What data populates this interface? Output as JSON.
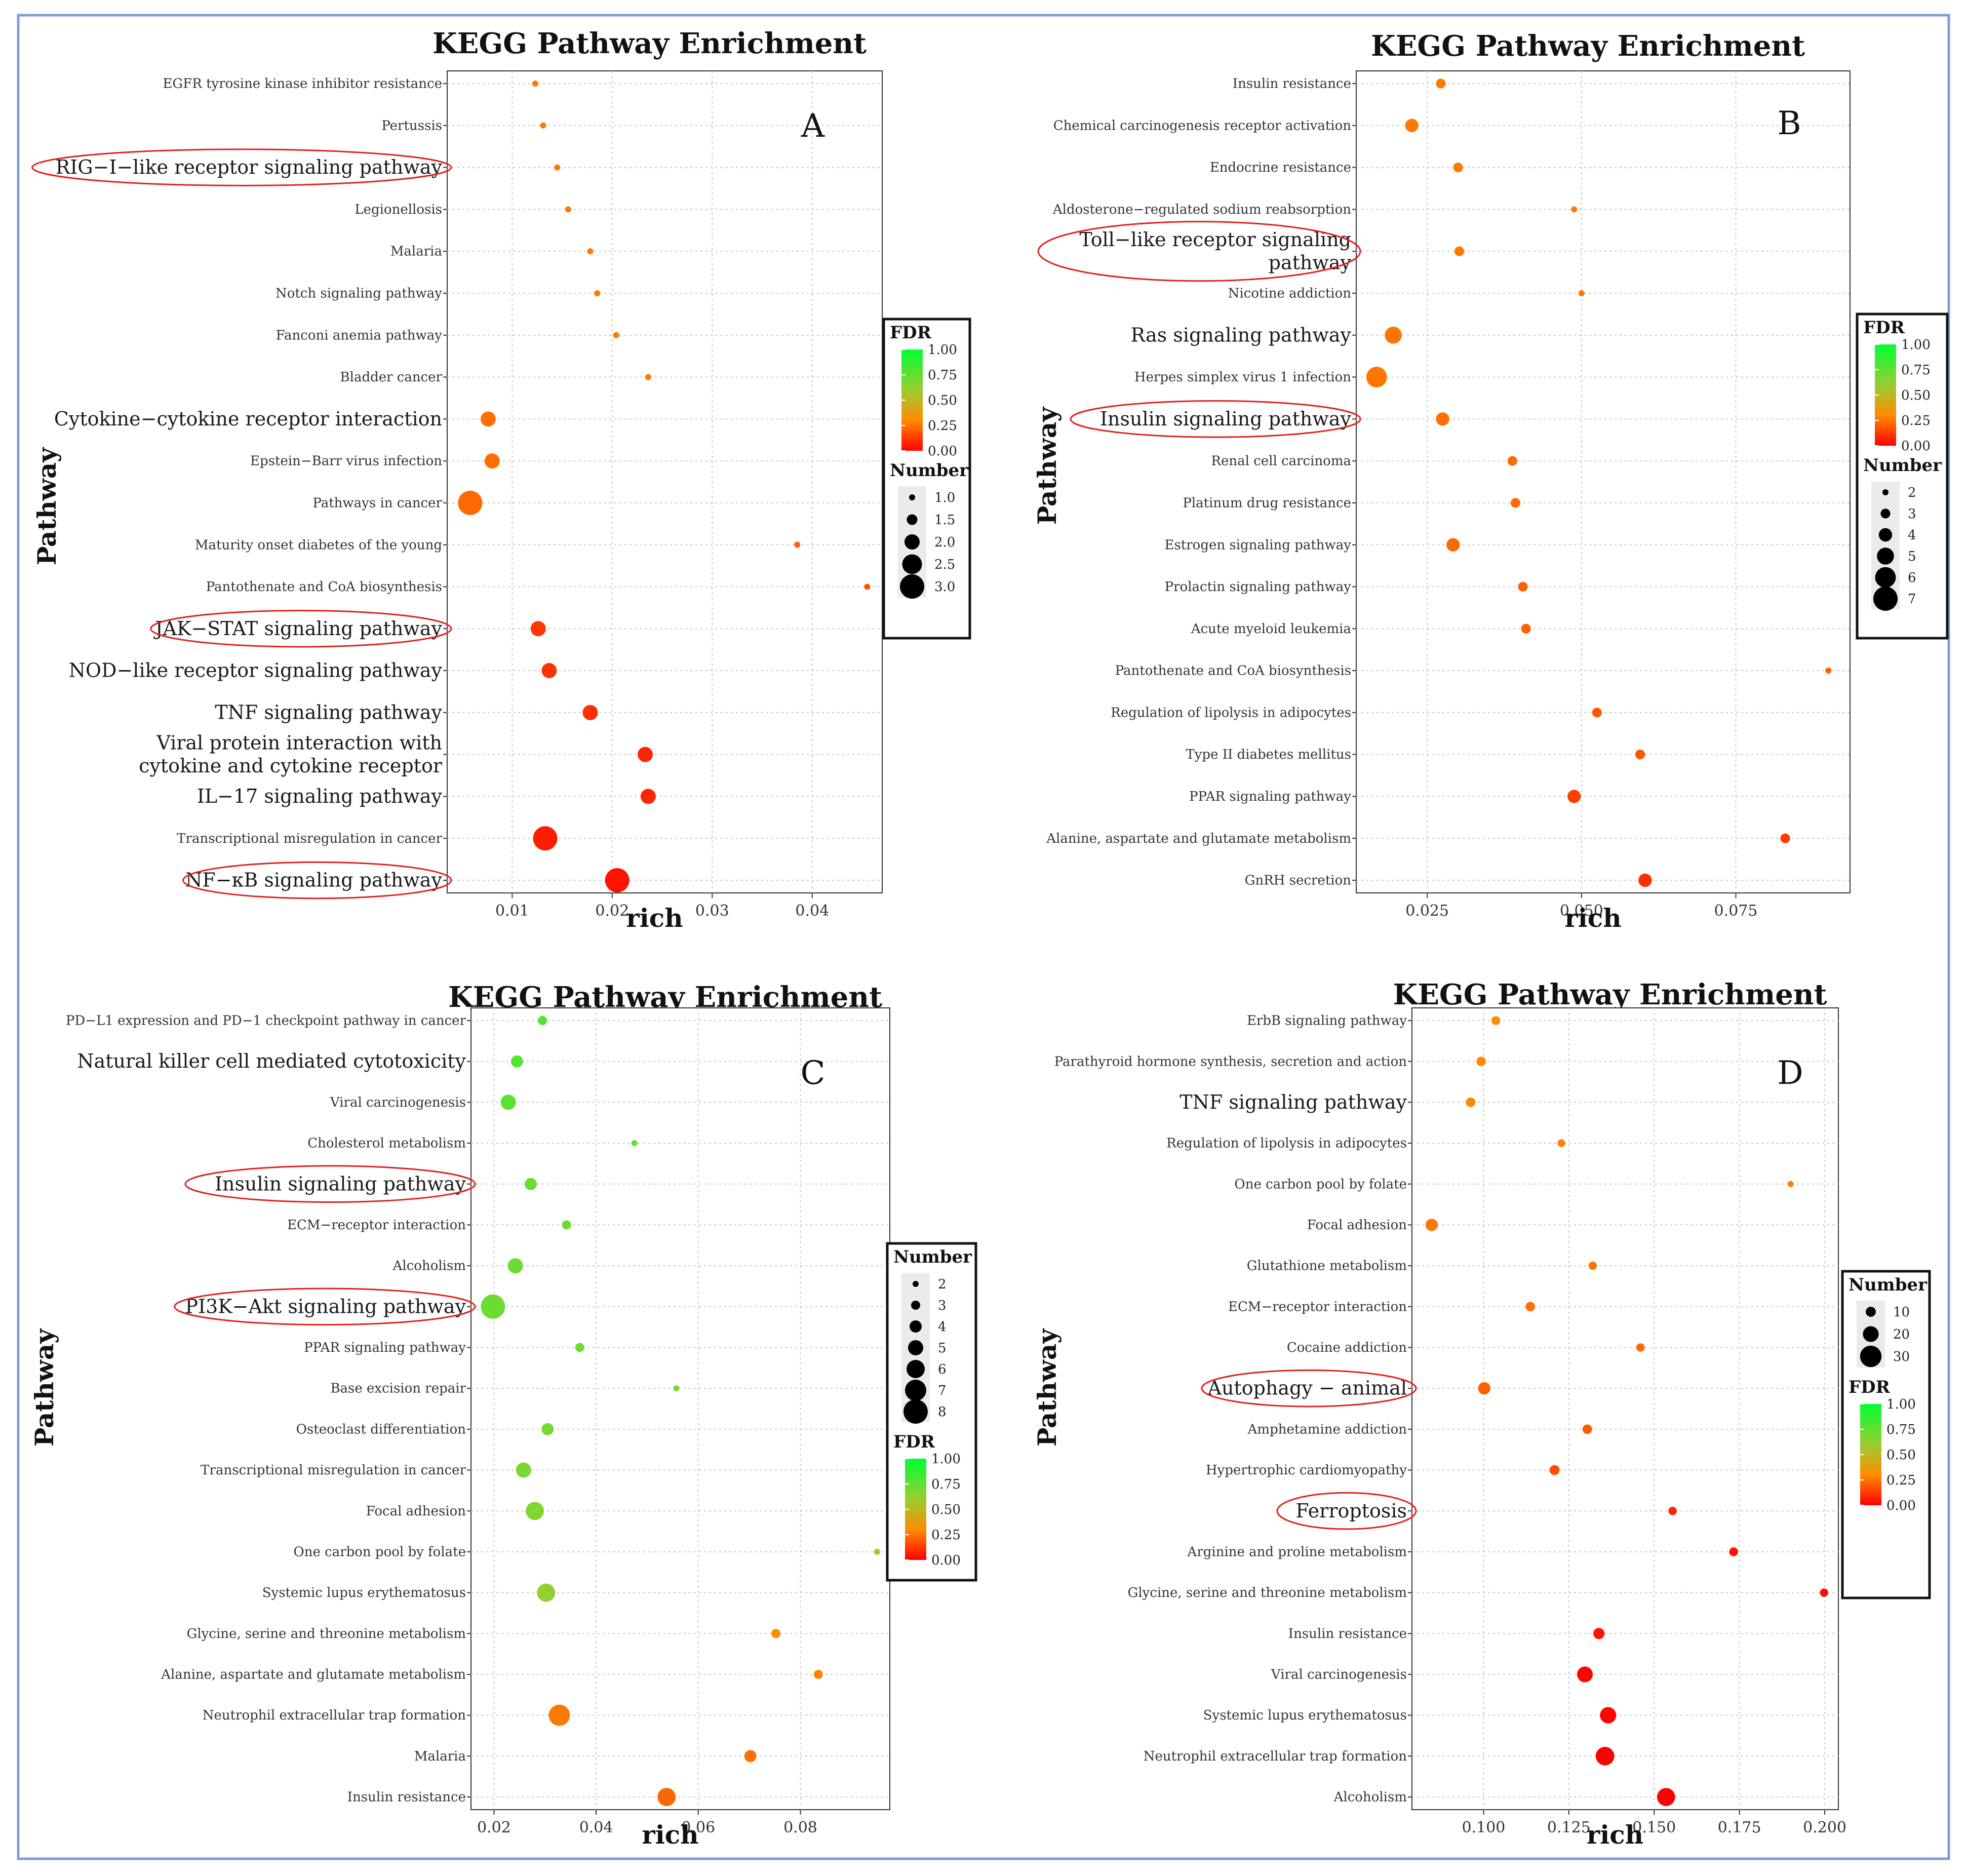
{
  "figure": {
    "border_color": "#7B9FD3",
    "highlight_color": "#E0201B",
    "fdr_gradient": [
      "#FF0000",
      "#FF8C00",
      "#9ACD32",
      "#00FF33"
    ],
    "grid_color": "#C8C8C8"
  },
  "chart_data": [
    {
      "type": "scatter",
      "panel_label": "A",
      "title": "KEGG Pathway Enrichment",
      "xlabel": "rich",
      "ylabel": "Pathway",
      "xlim": [
        0.0035,
        0.047
      ],
      "xticks": [
        0.01,
        0.02,
        0.03,
        0.04
      ],
      "xtick_labels": [
        "0.01",
        "0.02",
        "0.03",
        "0.04"
      ],
      "legend_order": [
        "fdr",
        "number"
      ],
      "fdr_legend": {
        "title": "FDR",
        "ticks": [
          "1.00",
          "0.75",
          "0.50",
          "0.25",
          "0.00"
        ]
      },
      "number_legend": {
        "title": "Number",
        "values": [
          1,
          1.5,
          2,
          2.5,
          3
        ],
        "labels": [
          "1.0",
          "1.5",
          "2.0",
          "2.5",
          "3.0"
        ],
        "min": 1,
        "max": 3
      },
      "points": [
        {
          "pathway": "EGFR tyrosine kinase inhibitor resistance",
          "rich": 0.0123,
          "number": 1,
          "fdr": 0.26,
          "emph": false,
          "circled": false
        },
        {
          "pathway": "Pertussis",
          "rich": 0.0131,
          "number": 1,
          "fdr": 0.26,
          "emph": false,
          "circled": false
        },
        {
          "pathway": "RIG−I−like receptor signaling pathway",
          "rich": 0.0145,
          "number": 1,
          "fdr": 0.26,
          "emph": true,
          "circled": true
        },
        {
          "pathway": "Legionellosis",
          "rich": 0.0156,
          "number": 1,
          "fdr": 0.26,
          "emph": false,
          "circled": false
        },
        {
          "pathway": "Malaria",
          "rich": 0.0178,
          "number": 1,
          "fdr": 0.26,
          "emph": false,
          "circled": false
        },
        {
          "pathway": "Notch signaling pathway",
          "rich": 0.0185,
          "number": 1,
          "fdr": 0.26,
          "emph": false,
          "circled": false
        },
        {
          "pathway": "Fanconi anemia pathway",
          "rich": 0.0204,
          "number": 1,
          "fdr": 0.26,
          "emph": false,
          "circled": false
        },
        {
          "pathway": "Bladder cancer",
          "rich": 0.0236,
          "number": 1,
          "fdr": 0.26,
          "emph": false,
          "circled": false
        },
        {
          "pathway": "Cytokine−cytokine receptor interaction",
          "rich": 0.0076,
          "number": 2,
          "fdr": 0.24,
          "emph": true,
          "circled": false
        },
        {
          "pathway": "Epstein−Barr virus infection",
          "rich": 0.008,
          "number": 2,
          "fdr": 0.24,
          "emph": false,
          "circled": false
        },
        {
          "pathway": "Pathways in cancer",
          "rich": 0.0058,
          "number": 3,
          "fdr": 0.22,
          "emph": false,
          "circled": false
        },
        {
          "pathway": "Maturity onset diabetes of the young",
          "rich": 0.0385,
          "number": 1,
          "fdr": 0.2,
          "emph": false,
          "circled": false
        },
        {
          "pathway": "Pantothenate and CoA biosynthesis",
          "rich": 0.0455,
          "number": 1,
          "fdr": 0.18,
          "emph": false,
          "circled": false
        },
        {
          "pathway": "JAK−STAT signaling pathway",
          "rich": 0.0126,
          "number": 2,
          "fdr": 0.12,
          "emph": true,
          "circled": true
        },
        {
          "pathway": "NOD−like receptor signaling pathway",
          "rich": 0.0137,
          "number": 2,
          "fdr": 0.11,
          "emph": true,
          "circled": false
        },
        {
          "pathway": "TNF signaling pathway",
          "rich": 0.0178,
          "number": 2,
          "fdr": 0.1,
          "emph": true,
          "circled": false
        },
        {
          "pathway": "Viral protein interaction with\ncytokine and cytokine receptor",
          "rich": 0.0233,
          "number": 2,
          "fdr": 0.08,
          "emph": true,
          "circled": false
        },
        {
          "pathway": "IL−17 signaling pathway",
          "rich": 0.0236,
          "number": 2,
          "fdr": 0.08,
          "emph": true,
          "circled": false
        },
        {
          "pathway": "Transcriptional misregulation in cancer",
          "rich": 0.0133,
          "number": 3,
          "fdr": 0.06,
          "emph": false,
          "circled": false
        },
        {
          "pathway": "NF−κB signaling pathway",
          "rich": 0.0205,
          "number": 3,
          "fdr": 0.04,
          "emph": true,
          "circled": true
        }
      ]
    },
    {
      "type": "scatter",
      "panel_label": "B",
      "title": "KEGG Pathway Enrichment",
      "xlabel": "rich",
      "ylabel": "Pathway",
      "xlim": [
        0.0135,
        0.0935
      ],
      "xticks": [
        0.025,
        0.05,
        0.075
      ],
      "xtick_labels": [
        "0.025",
        "0.050",
        "0.075"
      ],
      "legend_order": [
        "fdr",
        "number"
      ],
      "fdr_legend": {
        "title": "FDR",
        "ticks": [
          "1.00",
          "0.75",
          "0.50",
          "0.25",
          "0.00"
        ]
      },
      "number_legend": {
        "title": "Number",
        "values": [
          2,
          3,
          4,
          5,
          6,
          7
        ],
        "labels": [
          "2",
          "3",
          "4",
          "5",
          "6",
          "7"
        ],
        "min": 2,
        "max": 7
      },
      "points": [
        {
          "pathway": "Insulin resistance",
          "rich": 0.0272,
          "number": 3,
          "fdr": 0.26,
          "emph": false,
          "circled": false
        },
        {
          "pathway": "Chemical carcinogenesis receptor activation",
          "rich": 0.0225,
          "number": 4,
          "fdr": 0.26,
          "emph": false,
          "circled": false
        },
        {
          "pathway": "Endocrine resistance",
          "rich": 0.03,
          "number": 3,
          "fdr": 0.26,
          "emph": false,
          "circled": false
        },
        {
          "pathway": "Aldosterone−regulated sodium reabsorption",
          "rich": 0.0488,
          "number": 2,
          "fdr": 0.26,
          "emph": false,
          "circled": false
        },
        {
          "pathway": "Toll−like receptor signaling\npathway",
          "rich": 0.0302,
          "number": 3,
          "fdr": 0.26,
          "emph": true,
          "circled": true
        },
        {
          "pathway": "Nicotine addiction",
          "rich": 0.05,
          "number": 2,
          "fdr": 0.26,
          "emph": false,
          "circled": false
        },
        {
          "pathway": "Ras signaling pathway",
          "rich": 0.0195,
          "number": 5,
          "fdr": 0.25,
          "emph": true,
          "circled": false
        },
        {
          "pathway": "Herpes simplex virus 1 infection",
          "rich": 0.0168,
          "number": 6,
          "fdr": 0.25,
          "emph": false,
          "circled": false
        },
        {
          "pathway": "Insulin signaling pathway",
          "rich": 0.0275,
          "number": 4,
          "fdr": 0.24,
          "emph": true,
          "circled": true
        },
        {
          "pathway": "Renal cell carcinoma",
          "rich": 0.0388,
          "number": 3,
          "fdr": 0.23,
          "emph": false,
          "circled": false
        },
        {
          "pathway": "Platinum drug resistance",
          "rich": 0.0393,
          "number": 3,
          "fdr": 0.23,
          "emph": false,
          "circled": false
        },
        {
          "pathway": "Estrogen signaling pathway",
          "rich": 0.0292,
          "number": 4,
          "fdr": 0.22,
          "emph": false,
          "circled": false
        },
        {
          "pathway": "Prolactin signaling pathway",
          "rich": 0.0405,
          "number": 3,
          "fdr": 0.21,
          "emph": false,
          "circled": false
        },
        {
          "pathway": "Acute myeloid leukemia",
          "rich": 0.041,
          "number": 3,
          "fdr": 0.21,
          "emph": false,
          "circled": false
        },
        {
          "pathway": "Pantothenate and CoA biosynthesis",
          "rich": 0.09,
          "number": 2,
          "fdr": 0.2,
          "emph": false,
          "circled": false
        },
        {
          "pathway": "Regulation of lipolysis in adipocytes",
          "rich": 0.0525,
          "number": 3,
          "fdr": 0.19,
          "emph": false,
          "circled": false
        },
        {
          "pathway": "Type II diabetes mellitus",
          "rich": 0.0595,
          "number": 3,
          "fdr": 0.18,
          "emph": false,
          "circled": false
        },
        {
          "pathway": "PPAR signaling pathway",
          "rich": 0.0488,
          "number": 4,
          "fdr": 0.14,
          "emph": false,
          "circled": false
        },
        {
          "pathway": "Alanine, aspartate and glutamate metabolism",
          "rich": 0.083,
          "number": 3,
          "fdr": 0.13,
          "emph": false,
          "circled": false
        },
        {
          "pathway": "GnRH secretion",
          "rich": 0.0603,
          "number": 4,
          "fdr": 0.1,
          "emph": false,
          "circled": false
        }
      ]
    },
    {
      "type": "scatter",
      "panel_label": "C",
      "title": "KEGG Pathway Enrichment",
      "xlabel": "rich",
      "ylabel": "Pathway",
      "xlim": [
        0.0155,
        0.0975
      ],
      "xticks": [
        0.02,
        0.04,
        0.06,
        0.08
      ],
      "xtick_labels": [
        "0.02",
        "0.04",
        "0.06",
        "0.08"
      ],
      "legend_order": [
        "number",
        "fdr"
      ],
      "fdr_legend": {
        "title": "FDR",
        "ticks": [
          "1.00",
          "0.75",
          "0.50",
          "0.25",
          "0.00"
        ]
      },
      "number_legend": {
        "title": "Number",
        "values": [
          2,
          3,
          4,
          5,
          6,
          7,
          8
        ],
        "labels": [
          "2",
          "3",
          "4",
          "5",
          "6",
          "7",
          "8"
        ],
        "min": 2,
        "max": 8
      },
      "points": [
        {
          "pathway": "PD−L1 expression and PD−1 checkpoint pathway in cancer",
          "rich": 0.0295,
          "number": 3,
          "fdr": 0.8,
          "emph": false,
          "circled": false
        },
        {
          "pathway": "Natural killer cell mediated cytotoxicity",
          "rich": 0.0245,
          "number": 4,
          "fdr": 0.78,
          "emph": true,
          "circled": false
        },
        {
          "pathway": "Viral carcinogenesis",
          "rich": 0.0228,
          "number": 5,
          "fdr": 0.76,
          "emph": false,
          "circled": false
        },
        {
          "pathway": "Cholesterol metabolism",
          "rich": 0.0475,
          "number": 2,
          "fdr": 0.74,
          "emph": false,
          "circled": false
        },
        {
          "pathway": "Insulin signaling pathway",
          "rich": 0.0272,
          "number": 4,
          "fdr": 0.72,
          "emph": true,
          "circled": true
        },
        {
          "pathway": "ECM−receptor interaction",
          "rich": 0.0342,
          "number": 3,
          "fdr": 0.72,
          "emph": false,
          "circled": false
        },
        {
          "pathway": "Alcoholism",
          "rich": 0.0242,
          "number": 5,
          "fdr": 0.72,
          "emph": false,
          "circled": false
        },
        {
          "pathway": "PI3K−Akt signaling pathway",
          "rich": 0.0198,
          "number": 8,
          "fdr": 0.72,
          "emph": true,
          "circled": true
        },
        {
          "pathway": "PPAR signaling pathway",
          "rich": 0.0368,
          "number": 3,
          "fdr": 0.72,
          "emph": false,
          "circled": false
        },
        {
          "pathway": "Base excision repair",
          "rich": 0.0557,
          "number": 2,
          "fdr": 0.7,
          "emph": false,
          "circled": false
        },
        {
          "pathway": "Osteoclast differentiation",
          "rich": 0.0305,
          "number": 4,
          "fdr": 0.7,
          "emph": false,
          "circled": false
        },
        {
          "pathway": "Transcriptional misregulation in cancer",
          "rich": 0.0258,
          "number": 5,
          "fdr": 0.68,
          "emph": false,
          "circled": false
        },
        {
          "pathway": "Focal adhesion",
          "rich": 0.028,
          "number": 6,
          "fdr": 0.66,
          "emph": false,
          "circled": false
        },
        {
          "pathway": "One carbon pool by folate",
          "rich": 0.095,
          "number": 2,
          "fdr": 0.55,
          "emph": false,
          "circled": false
        },
        {
          "pathway": "Systemic lupus erythematosus",
          "rich": 0.0302,
          "number": 6,
          "fdr": 0.62,
          "emph": false,
          "circled": false
        },
        {
          "pathway": "Glycine, serine and threonine metabolism",
          "rich": 0.0752,
          "number": 3,
          "fdr": 0.3,
          "emph": false,
          "circled": false
        },
        {
          "pathway": "Alanine, aspartate and glutamate metabolism",
          "rich": 0.0835,
          "number": 3,
          "fdr": 0.28,
          "emph": false,
          "circled": false
        },
        {
          "pathway": "Neutrophil extracellular trap formation",
          "rich": 0.0328,
          "number": 7,
          "fdr": 0.26,
          "emph": false,
          "circled": false
        },
        {
          "pathway": "Malaria",
          "rich": 0.0702,
          "number": 4,
          "fdr": 0.24,
          "emph": false,
          "circled": false
        },
        {
          "pathway": "Insulin resistance",
          "rich": 0.0538,
          "number": 6,
          "fdr": 0.22,
          "emph": false,
          "circled": false
        }
      ]
    },
    {
      "type": "scatter",
      "panel_label": "D",
      "title": "KEGG Pathway Enrichment",
      "xlabel": "rich",
      "ylabel": "Pathway",
      "xlim": [
        0.079,
        0.204
      ],
      "xticks": [
        0.1,
        0.125,
        0.15,
        0.175,
        0.2
      ],
      "xtick_labels": [
        "0.100",
        "0.125",
        "0.150",
        "0.175",
        "0.200"
      ],
      "legend_order": [
        "number",
        "fdr"
      ],
      "fdr_legend": {
        "title": "FDR",
        "ticks": [
          "1.00",
          "0.75",
          "0.50",
          "0.25",
          "0.00"
        ]
      },
      "number_legend": {
        "title": "Number",
        "values": [
          10,
          20,
          30
        ],
        "labels": [
          "10",
          "20",
          "30"
        ],
        "min": 3,
        "max": 35
      },
      "points": [
        {
          "pathway": "ErbB signaling pathway",
          "rich": 0.1036,
          "number": 8,
          "fdr": 0.3,
          "emph": false,
          "circled": false
        },
        {
          "pathway": "Parathyroid hormone synthesis, secretion and action",
          "rich": 0.0993,
          "number": 9,
          "fdr": 0.3,
          "emph": false,
          "circled": false
        },
        {
          "pathway": "TNF signaling pathway",
          "rich": 0.0962,
          "number": 9,
          "fdr": 0.29,
          "emph": true,
          "circled": false
        },
        {
          "pathway": "Regulation of lipolysis in adipocytes",
          "rich": 0.1228,
          "number": 6,
          "fdr": 0.28,
          "emph": false,
          "circled": false
        },
        {
          "pathway": "One carbon pool by folate",
          "rich": 0.19,
          "number": 3,
          "fdr": 0.27,
          "emph": false,
          "circled": false
        },
        {
          "pathway": "Focal adhesion",
          "rich": 0.0848,
          "number": 14,
          "fdr": 0.26,
          "emph": false,
          "circled": false
        },
        {
          "pathway": "Glutathione metabolism",
          "rich": 0.132,
          "number": 7,
          "fdr": 0.25,
          "emph": false,
          "circled": false
        },
        {
          "pathway": "ECM−receptor interaction",
          "rich": 0.1137,
          "number": 9,
          "fdr": 0.24,
          "emph": false,
          "circled": false
        },
        {
          "pathway": "Cocaine addiction",
          "rich": 0.146,
          "number": 7,
          "fdr": 0.22,
          "emph": false,
          "circled": false
        },
        {
          "pathway": "Autophagy − animal",
          "rich": 0.1002,
          "number": 14,
          "fdr": 0.21,
          "emph": true,
          "circled": true
        },
        {
          "pathway": "Amphetamine addiction",
          "rich": 0.1304,
          "number": 9,
          "fdr": 0.19,
          "emph": false,
          "circled": false
        },
        {
          "pathway": "Hypertrophic cardiomyopathy",
          "rich": 0.1208,
          "number": 10,
          "fdr": 0.17,
          "emph": false,
          "circled": false
        },
        {
          "pathway": "Ferroptosis",
          "rich": 0.1554,
          "number": 7,
          "fdr": 0.08,
          "emph": true,
          "circled": true
        },
        {
          "pathway": "Arginine and proline metabolism",
          "rich": 0.1733,
          "number": 8,
          "fdr": 0.04,
          "emph": false,
          "circled": false
        },
        {
          "pathway": "Glycine, serine and threonine metabolism",
          "rich": 0.1998,
          "number": 7,
          "fdr": 0.03,
          "emph": false,
          "circled": false
        },
        {
          "pathway": "Insulin resistance",
          "rich": 0.1338,
          "number": 12,
          "fdr": 0.04,
          "emph": false,
          "circled": false
        },
        {
          "pathway": "Viral carcinogenesis",
          "rich": 0.1297,
          "number": 20,
          "fdr": 0.01,
          "emph": false,
          "circled": false
        },
        {
          "pathway": "Systemic lupus erythematosus",
          "rich": 0.1365,
          "number": 21,
          "fdr": 0.01,
          "emph": false,
          "circled": false
        },
        {
          "pathway": "Neutrophil extracellular trap formation",
          "rich": 0.1356,
          "number": 25,
          "fdr": 0.0,
          "emph": false,
          "circled": false
        },
        {
          "pathway": "Alcoholism",
          "rich": 0.1535,
          "number": 24,
          "fdr": 0.0,
          "emph": false,
          "circled": false
        }
      ]
    }
  ]
}
